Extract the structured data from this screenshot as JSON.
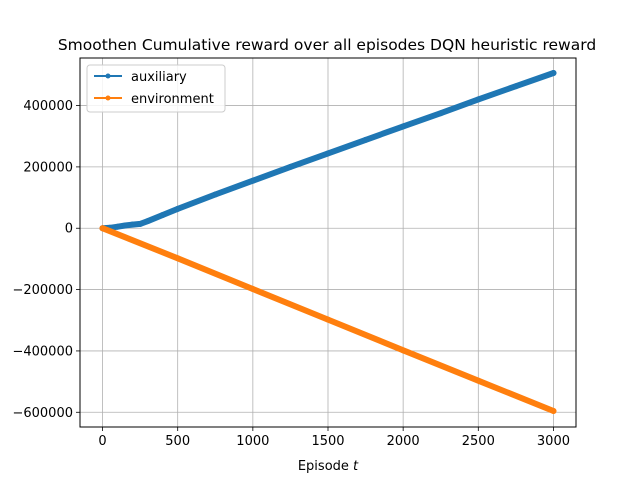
{
  "chart_data": {
    "type": "line",
    "title": "Smoothen Cumulative reward over all episodes DQN heuristic reward",
    "xlabel_text": "Episode ",
    "xlabel_var": "t",
    "ylabel": "",
    "xlim": [
      -150,
      3150
    ],
    "ylim": [
      -648000,
      555000
    ],
    "xticks": [
      0,
      500,
      1000,
      1500,
      2000,
      2500,
      3000
    ],
    "yticks": [
      -600000,
      -400000,
      -200000,
      0,
      200000,
      400000
    ],
    "grid": true,
    "legend_position": "upper-left",
    "series": [
      {
        "name": "auxiliary",
        "color": "#1f77b4",
        "x": [
          0,
          50,
          100,
          150,
          200,
          250,
          300,
          400,
          500,
          750,
          1000,
          1250,
          1500,
          1750,
          2000,
          2250,
          2500,
          2750,
          3000
        ],
        "y": [
          0,
          1500,
          5000,
          9000,
          12000,
          14000,
          23000,
          43000,
          63000,
          110000,
          155000,
          200000,
          244000,
          288000,
          332000,
          375000,
          420000,
          463000,
          506000
        ]
      },
      {
        "name": "environment",
        "color": "#ff7f0e",
        "x": [
          0,
          500,
          1000,
          1500,
          2000,
          2500,
          3000
        ],
        "y": [
          0,
          -98000,
          -198000,
          -298000,
          -398000,
          -497000,
          -596000
        ]
      }
    ]
  }
}
